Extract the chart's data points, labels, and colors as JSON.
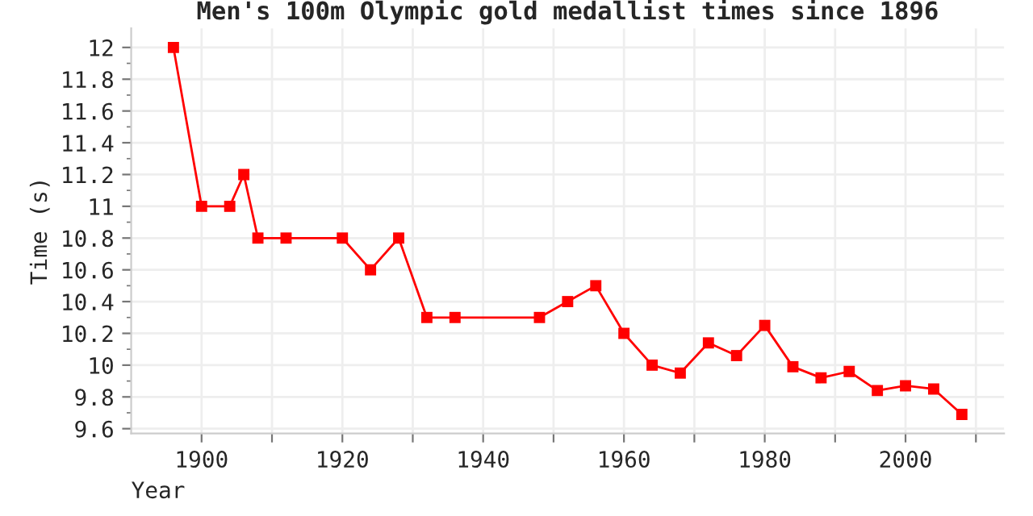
{
  "chart_data": {
    "type": "line",
    "title": "Men's 100m Olympic gold medallist times since 1896",
    "xlabel": "Year",
    "ylabel": "Time (s)",
    "x": [
      1896,
      1900,
      1904,
      1906,
      1908,
      1912,
      1920,
      1924,
      1928,
      1932,
      1936,
      1948,
      1952,
      1956,
      1960,
      1964,
      1968,
      1972,
      1976,
      1980,
      1984,
      1988,
      1992,
      1996,
      2000,
      2004,
      2008
    ],
    "series": [
      {
        "color": "#ff0000",
        "values": [
          12.0,
          11.0,
          11.0,
          11.2,
          10.8,
          10.8,
          10.8,
          10.6,
          10.8,
          10.3,
          10.3,
          10.3,
          10.4,
          10.5,
          10.2,
          10.0,
          9.95,
          10.14,
          10.06,
          10.25,
          9.99,
          9.92,
          9.96,
          9.84,
          9.87,
          9.85,
          9.69
        ]
      }
    ],
    "marker": "square",
    "line_style": "solid",
    "grid": true,
    "xlim": [
      1890,
      2014
    ],
    "ylim": [
      9.57,
      12.12
    ],
    "xticks": [
      1900,
      {
        "value": 1910,
        "label": null
      },
      1920,
      {
        "value": 1930,
        "label": null
      },
      1940,
      {
        "value": 1950,
        "label": null
      },
      1960,
      {
        "value": 1970,
        "label": null
      },
      1980,
      {
        "value": 1990,
        "label": null
      },
      2000,
      {
        "value": 2010,
        "label": null
      }
    ],
    "yticks": [
      9.6,
      {
        "value": 9.7,
        "label": null
      },
      9.8,
      {
        "value": 9.9,
        "label": null
      },
      10,
      {
        "value": 10.1,
        "label": null
      },
      10.2,
      {
        "value": 10.3,
        "label": null
      },
      10.4,
      {
        "value": 10.5,
        "label": null
      },
      10.6,
      {
        "value": 10.7,
        "label": null
      },
      10.8,
      {
        "value": 10.9,
        "label": null
      },
      11,
      {
        "value": 11.1,
        "label": null
      },
      11.2,
      {
        "value": 11.3,
        "label": null
      },
      11.4,
      {
        "value": 11.5,
        "label": null
      },
      11.6,
      {
        "value": 11.7,
        "label": null
      },
      11.8,
      {
        "value": 11.9,
        "label": null
      },
      12
    ]
  }
}
